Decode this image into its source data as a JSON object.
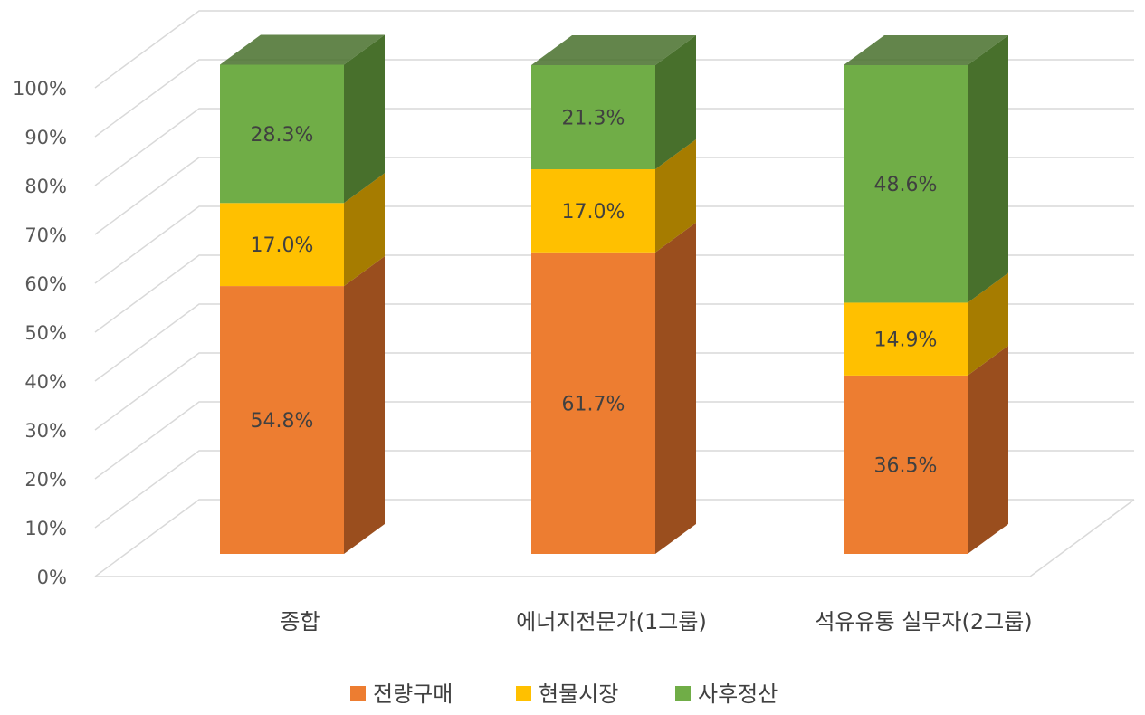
{
  "chart_data": {
    "type": "bar",
    "stacked": true,
    "three_d": true,
    "categories": [
      "종합",
      "에너지전문가(1그룹)",
      "석유유통 실무자(2그룹)"
    ],
    "series": [
      {
        "name": "전량구매",
        "values": [
          54.8,
          61.7,
          36.5
        ],
        "labels": [
          "54.8%",
          "61.7%",
          "36.5%"
        ],
        "color": "#ED7D31",
        "side_color": "#9A4E1E"
      },
      {
        "name": "현물시장",
        "values": [
          17.0,
          17.0,
          14.9
        ],
        "labels": [
          "17.0%",
          "17.0%",
          "14.9%"
        ],
        "color": "#FFC000",
        "side_color": "#A67C00"
      },
      {
        "name": "사후정산",
        "values": [
          28.3,
          21.3,
          48.6
        ],
        "labels": [
          "28.3%",
          "21.3%",
          "48.6%"
        ],
        "color": "#70AD47",
        "side_color": "#48702C"
      }
    ],
    "ylim": [
      0,
      100
    ],
    "yticks": [
      "0%",
      "10%",
      "20%",
      "30%",
      "40%",
      "50%",
      "60%",
      "70%",
      "80%",
      "90%",
      "100%"
    ],
    "grid": true,
    "legend_position": "bottom",
    "title": "",
    "xlabel": "",
    "ylabel": ""
  }
}
